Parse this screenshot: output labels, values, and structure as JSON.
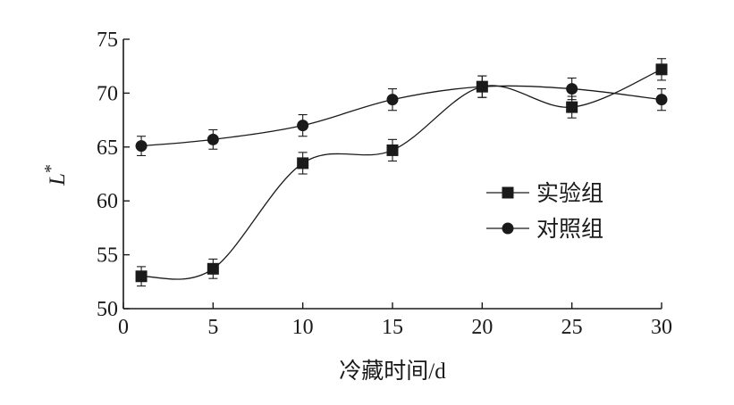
{
  "chart_data": {
    "type": "line",
    "xlabel": "冷藏时间/d",
    "ylabel": "L*",
    "xlim": [
      0,
      30
    ],
    "ylim": [
      50,
      75
    ],
    "xticks": [
      0,
      5,
      10,
      15,
      20,
      25,
      30
    ],
    "yticks": [
      50,
      55,
      60,
      65,
      70,
      75
    ],
    "grid": false,
    "legend_position": "center-right",
    "line_style": "smooth",
    "series": [
      {
        "name": "实验组",
        "marker": "square",
        "color": "#1a1a1a",
        "x": [
          1,
          5,
          10,
          15,
          20,
          25,
          30
        ],
        "y": [
          53.0,
          53.7,
          63.5,
          64.7,
          70.6,
          68.7,
          72.2
        ],
        "error": [
          0.9,
          0.9,
          1.0,
          1.0,
          1.0,
          1.0,
          1.0
        ]
      },
      {
        "name": "对照组",
        "marker": "circle",
        "color": "#1a1a1a",
        "x": [
          1,
          5,
          10,
          15,
          20,
          25,
          30
        ],
        "y": [
          65.1,
          65.7,
          67.0,
          69.4,
          70.6,
          70.4,
          69.4
        ],
        "error": [
          0.9,
          0.9,
          1.0,
          1.0,
          1.0,
          1.0,
          1.0
        ]
      }
    ]
  }
}
